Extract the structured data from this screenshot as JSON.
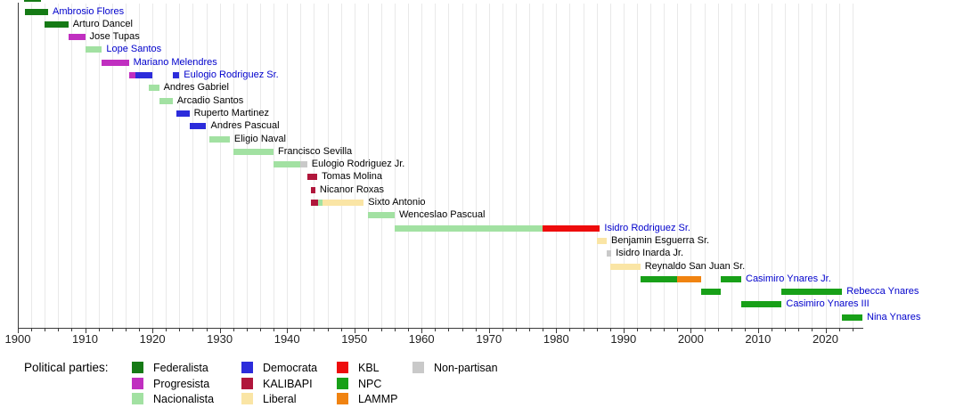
{
  "link_color": "#0000CC",
  "chart_data": {
    "type": "timeline",
    "title": "",
    "x_axis": {
      "min": 1900,
      "max": 2025.5,
      "major_tick_interval": 10,
      "minor_tick_interval": 2,
      "tick_labels": [
        "1900",
        "1910",
        "1920",
        "1930",
        "1940",
        "1950",
        "1960",
        "1970",
        "1980",
        "1990",
        "2000",
        "2010",
        "2020"
      ]
    },
    "parties": [
      {
        "name": "Federalista",
        "color": "#157A15"
      },
      {
        "name": "Progresista",
        "color": "#C02FC0"
      },
      {
        "name": "Nacionalista",
        "color": "#A2E1A2"
      },
      {
        "name": "Democrata",
        "color": "#2C2CDB"
      },
      {
        "name": "KALIBAPI",
        "color": "#B0163B"
      },
      {
        "name": "Liberal",
        "color": "#FAE5A5"
      },
      {
        "name": "KBL",
        "color": "#EE0C0C"
      },
      {
        "name": "NPC",
        "color": "#18A018"
      },
      {
        "name": "LAMMP",
        "color": "#F08311"
      },
      {
        "name": "Non-partisan",
        "color": "#C9C9C9"
      }
    ],
    "people": [
      {
        "name": "Ambrosio Flores",
        "is_link": true,
        "terms": [
          {
            "start": 1901,
            "end": 1904.5,
            "party": "Federalista"
          }
        ]
      },
      {
        "name": "Arturo Dancel",
        "is_link": false,
        "terms": [
          {
            "start": 1904,
            "end": 1907.5,
            "party": "Federalista"
          }
        ]
      },
      {
        "name": "Jose Tupas",
        "is_link": false,
        "terms": [
          {
            "start": 1907.5,
            "end": 1910,
            "party": "Progresista"
          }
        ]
      },
      {
        "name": "Lope Santos",
        "is_link": true,
        "terms": [
          {
            "start": 1910,
            "end": 1912.5,
            "party": "Nacionalista"
          }
        ]
      },
      {
        "name": "Mariano Melendres",
        "is_link": true,
        "terms": [
          {
            "start": 1912.5,
            "end": 1916.5,
            "party": "Progresista"
          }
        ]
      },
      {
        "name": "Eulogio Rodriguez Sr.",
        "is_link": true,
        "terms": [
          {
            "start": 1916.5,
            "end": 1917.5,
            "party": "Progresista"
          },
          {
            "start": 1917.5,
            "end": 1920,
            "party": "Democrata"
          },
          {
            "start": 1923,
            "end": 1924,
            "party": "Democrata"
          }
        ]
      },
      {
        "name": "Andres Gabriel",
        "is_link": false,
        "terms": [
          {
            "start": 1919.5,
            "end": 1921,
            "party": "Nacionalista"
          }
        ]
      },
      {
        "name": "Arcadio Santos",
        "is_link": false,
        "terms": [
          {
            "start": 1921,
            "end": 1923,
            "party": "Nacionalista"
          }
        ]
      },
      {
        "name": "Ruperto Martinez",
        "is_link": false,
        "terms": [
          {
            "start": 1923.5,
            "end": 1925.5,
            "party": "Democrata"
          }
        ]
      },
      {
        "name": "Andres Pascual",
        "is_link": false,
        "terms": [
          {
            "start": 1925.5,
            "end": 1928,
            "party": "Democrata"
          }
        ]
      },
      {
        "name": "Eligio Naval",
        "is_link": false,
        "terms": [
          {
            "start": 1928.5,
            "end": 1931.5,
            "party": "Nacionalista"
          }
        ]
      },
      {
        "name": "Francisco Sevilla",
        "is_link": false,
        "terms": [
          {
            "start": 1932,
            "end": 1938,
            "party": "Nacionalista"
          }
        ]
      },
      {
        "name": "Eulogio Rodriguez Jr.",
        "is_link": false,
        "terms": [
          {
            "start": 1938,
            "end": 1942,
            "party": "Nacionalista"
          },
          {
            "start": 1942,
            "end": 1943,
            "party": "Non-partisan"
          }
        ]
      },
      {
        "name": "Tomas Molina",
        "is_link": false,
        "terms": [
          {
            "start": 1943,
            "end": 1944.5,
            "party": "KALIBAPI"
          }
        ]
      },
      {
        "name": "Nicanor Roxas",
        "is_link": false,
        "terms": [
          {
            "start": 1943.5,
            "end": 1944.2,
            "party": "KALIBAPI"
          }
        ]
      },
      {
        "name": "Sixto Antonio",
        "is_link": false,
        "terms": [
          {
            "start": 1943.6,
            "end": 1944.6,
            "party": "KALIBAPI"
          },
          {
            "start": 1944.6,
            "end": 1945.3,
            "party": "Nacionalista"
          },
          {
            "start": 1945.3,
            "end": 1951.4,
            "party": "Liberal"
          }
        ]
      },
      {
        "name": "Wenceslao Pascual",
        "is_link": false,
        "terms": [
          {
            "start": 1952,
            "end": 1956,
            "party": "Nacionalista"
          }
        ]
      },
      {
        "name": "Isidro Rodriguez Sr.",
        "is_link": true,
        "terms": [
          {
            "start": 1956,
            "end": 1978,
            "party": "Nacionalista"
          },
          {
            "start": 1978,
            "end": 1986.5,
            "party": "KBL"
          }
        ]
      },
      {
        "name": "Benjamin Esguerra Sr.",
        "is_link": false,
        "terms": [
          {
            "start": 1986,
            "end": 1987.5,
            "party": "Liberal"
          }
        ]
      },
      {
        "name": "Isidro Inarda Jr.",
        "is_link": false,
        "terms": [
          {
            "start": 1987.5,
            "end": 1988.2,
            "party": "Non-partisan"
          }
        ]
      },
      {
        "name": "Reynaldo San Juan Sr.",
        "is_link": false,
        "terms": [
          {
            "start": 1988,
            "end": 1992.5,
            "party": "Liberal"
          }
        ]
      },
      {
        "name": "Casimiro Ynares Jr.",
        "is_link": true,
        "terms": [
          {
            "start": 1992.5,
            "end": 1998,
            "party": "NPC"
          },
          {
            "start": 1998,
            "end": 2001.5,
            "party": "LAMMP"
          },
          {
            "start": 2004.5,
            "end": 2007.5,
            "party": "NPC"
          }
        ]
      },
      {
        "name": "Rebecca Ynares",
        "is_link": true,
        "terms": [
          {
            "start": 2001.5,
            "end": 2004.5,
            "party": "NPC"
          },
          {
            "start": 2013.5,
            "end": 2022.5,
            "party": "NPC"
          }
        ]
      },
      {
        "name": "Casimiro Ynares III",
        "is_link": true,
        "terms": [
          {
            "start": 2007.5,
            "end": 2013.5,
            "party": "NPC"
          }
        ]
      },
      {
        "name": "Nina Ynares",
        "is_link": true,
        "terms": [
          {
            "start": 2022.5,
            "end": 2025.5,
            "party": "NPC"
          }
        ]
      }
    ]
  },
  "legend": {
    "title": "Political parties:",
    "columns": [
      [
        "Federalista",
        "Progresista",
        "Nacionalista"
      ],
      [
        "Democrata",
        "KALIBAPI",
        "Liberal"
      ],
      [
        "KBL",
        "NPC",
        "LAMMP"
      ],
      [
        "Non-partisan"
      ]
    ]
  }
}
